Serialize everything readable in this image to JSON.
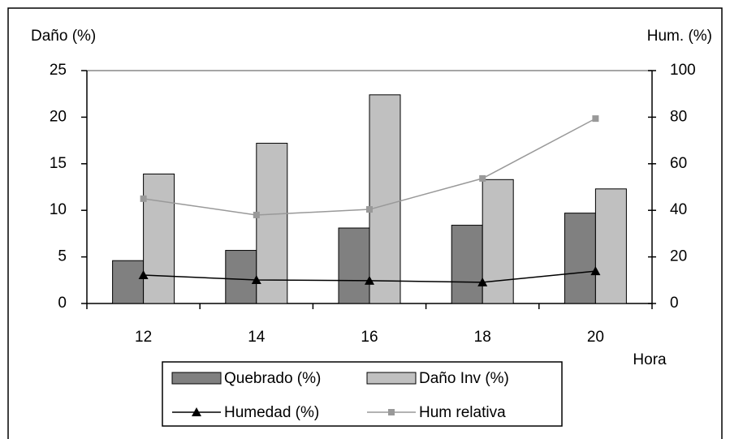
{
  "chart_data": {
    "type": "bar_line",
    "y_label": "Daño (%)",
    "y2_label": "Hum. (%)",
    "x_label": "Hora",
    "categories": [
      "12",
      "14",
      "16",
      "18",
      "20"
    ],
    "series": [
      {
        "name": "Quebrado (%)",
        "type": "bar",
        "color": "#808080",
        "values": [
          4.6,
          5.7,
          8.1,
          8.4,
          9.7
        ]
      },
      {
        "name": "Daño Inv (%)",
        "type": "bar",
        "color": "#c0c0c0",
        "values": [
          13.9,
          17.2,
          22.4,
          13.3,
          12.3
        ]
      },
      {
        "name": "Humedad (%)",
        "type": "line",
        "axis": "y2",
        "marker": "triangle",
        "color": "#000000",
        "values": [
          12.2,
          10.1,
          9.8,
          9.1,
          13.9
        ]
      },
      {
        "name": "Hum relativa",
        "type": "line",
        "axis": "y2",
        "marker": "square",
        "color": "#999999",
        "values": [
          45,
          38,
          40.4,
          53.7,
          79.4
        ]
      }
    ],
    "ylim": [
      0,
      25
    ],
    "yticks": [
      0,
      5,
      10,
      15,
      20,
      25
    ],
    "y2lim": [
      0,
      100
    ],
    "y2ticks": [
      0,
      20,
      40,
      60,
      80,
      100
    ]
  }
}
